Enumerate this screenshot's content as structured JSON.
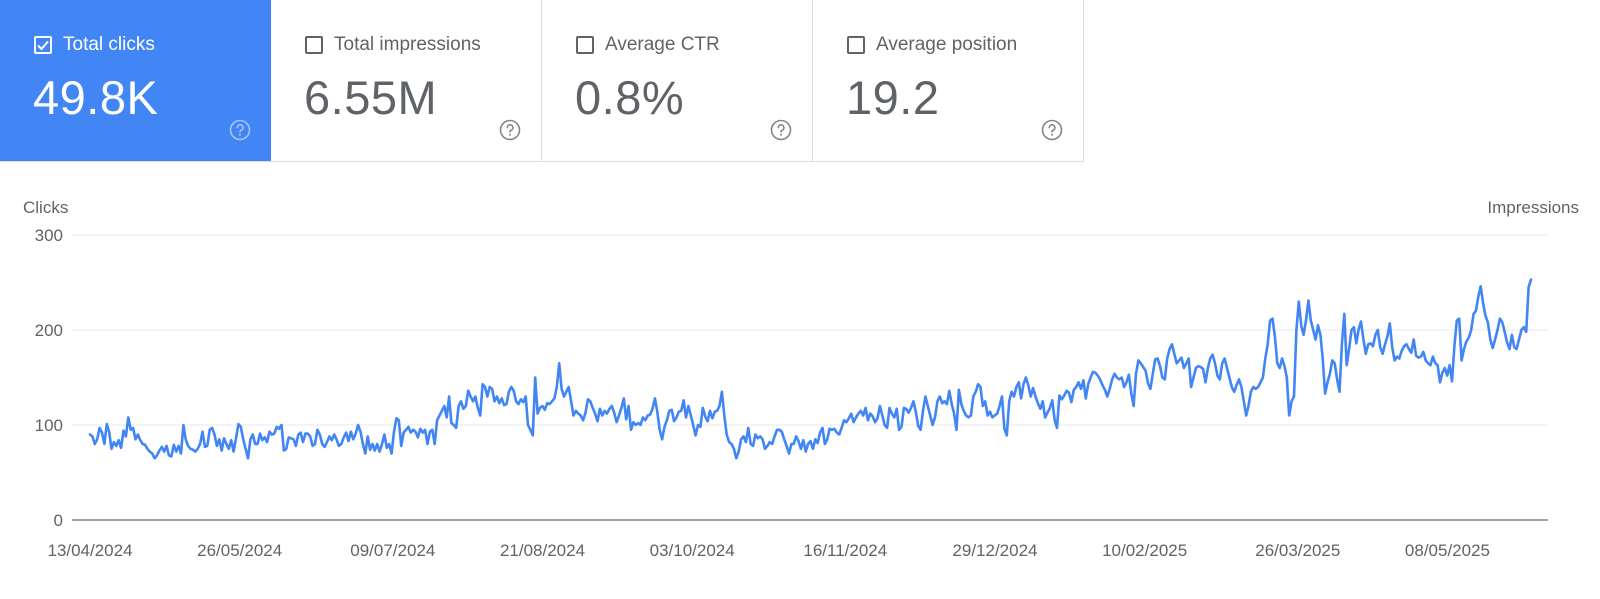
{
  "cards": [
    {
      "label": "Total clicks",
      "value": "49.8K",
      "checked": true
    },
    {
      "label": "Total impressions",
      "value": "6.55M",
      "checked": false
    },
    {
      "label": "Average CTR",
      "value": "0.8%",
      "checked": false
    },
    {
      "label": "Average position",
      "value": "19.2",
      "checked": false
    }
  ],
  "colors": {
    "accent": "#4285f4",
    "line": "#4285f4",
    "grid": "#e8eaed",
    "axis": "#5f6368"
  },
  "chart_data": {
    "type": "line",
    "ylabel": "Clicks",
    "y2label": "Impressions",
    "ylim": [
      0,
      300
    ],
    "yticks": [
      "0",
      "100",
      "200",
      "300"
    ],
    "xticks": [
      "13/04/2024",
      "26/05/2024",
      "09/07/2024",
      "21/08/2024",
      "03/10/2024",
      "16/11/2024",
      "29/12/2024",
      "10/02/2025",
      "26/03/2025",
      "08/05/2025"
    ],
    "x_start": "13/04/2024",
    "x_end": "01/06/2025",
    "grid": true,
    "series": [
      {
        "values": [
          90,
          88,
          80,
          85,
          97,
          92,
          80,
          101,
          93,
          75,
          82,
          78,
          84,
          76,
          94,
          88,
          108,
          95,
          97,
          85,
          90,
          84,
          80,
          79,
          75,
          72,
          70,
          65,
          68,
          73,
          77,
          72,
          78,
          68,
          67,
          79,
          72,
          78,
          70,
          100,
          85,
          78,
          75,
          74,
          72,
          75,
          80,
          93,
          77,
          78,
          95,
          97,
          90,
          78,
          85,
          73,
          86,
          80,
          75,
          84,
          72,
          86,
          101,
          98,
          85,
          75,
          65,
          85,
          90,
          80,
          80,
          91,
          84,
          87,
          82,
          93,
          90,
          91,
          98,
          96,
          100,
          73,
          75,
          87,
          86,
          85,
          78,
          90,
          92,
          82,
          91,
          91,
          88,
          78,
          80,
          95,
          90,
          80,
          77,
          82,
          88,
          84,
          90,
          85,
          78,
          80,
          87,
          92,
          83,
          93,
          85,
          91,
          100,
          93,
          80,
          70,
          88,
          74,
          80,
          73,
          80,
          72,
          80,
          90,
          76,
          80,
          70,
          93,
          107,
          105,
          78,
          92,
          95,
          98,
          92,
          95,
          93,
          87,
          96,
          92,
          95,
          80,
          93,
          95,
          80,
          105,
          110,
          115,
          120,
          108,
          130,
          102,
          100,
          97,
          120,
          125,
          117,
          120,
          136,
          130,
          125,
          130,
          118,
          110,
          143,
          140,
          130,
          140,
          138,
          125,
          130,
          123,
          128,
          121,
          122,
          135,
          140,
          136,
          125,
          122,
          127,
          124,
          130,
          100,
          95,
          89,
          150,
          112,
          118,
          120,
          116,
          123,
          122,
          125,
          128,
          140,
          165,
          138,
          130,
          135,
          140,
          125,
          110,
          115,
          112,
          110,
          105,
          113,
          127,
          125,
          118,
          112,
          104,
          117,
          110,
          115,
          112,
          117,
          120,
          113,
          103,
          110,
          118,
          128,
          106,
          120,
          95,
          103,
          100,
          102,
          100,
          108,
          105,
          110,
          111,
          117,
          128,
          114,
          95,
          85,
          98,
          105,
          115,
          116,
          104,
          108,
          114,
          115,
          126,
          108,
          120,
          110,
          100,
          89,
          100,
          98,
          118,
          109,
          104,
          115,
          107,
          114,
          115,
          120,
          135,
          110,
          90,
          82,
          80,
          75,
          65,
          72,
          85,
          88,
          82,
          97,
          80,
          78,
          90,
          86,
          88,
          85,
          75,
          78,
          82,
          80,
          88,
          95,
          95,
          93,
          85,
          78,
          70,
          80,
          80,
          88,
          83,
          75,
          84,
          72,
          80,
          83,
          75,
          85,
          81,
          92,
          97,
          80,
          85,
          96,
          95,
          96,
          92,
          90,
          97,
          105,
          103,
          107,
          112,
          103,
          108,
          112,
          115,
          110,
          118,
          105,
          112,
          109,
          103,
          107,
          120,
          110,
          100,
          97,
          118,
          112,
          108,
          117,
          95,
          98,
          118,
          117,
          113,
          118,
          125,
          114,
          99,
          95,
          115,
          130,
          120,
          110,
          100,
          108,
          125,
          130,
          123,
          125,
          122,
          136,
          122,
          112,
          95,
          137,
          122,
          115,
          110,
          108,
          110,
          130,
          135,
          143,
          140,
          120,
          125,
          110,
          114,
          108,
          110,
          112,
          120,
          130,
          96,
          89,
          125,
          135,
          130,
          140,
          145,
          128,
          143,
          150,
          142,
          130,
          139,
          130,
          123,
          117,
          125,
          108,
          113,
          118,
          126,
          105,
          97,
          131,
          127,
          131,
          136,
          134,
          124,
          137,
          140,
          145,
          138,
          147,
          128,
          143,
          150,
          156,
          155,
          152,
          148,
          142,
          137,
          130,
          138,
          148,
          154,
          150,
          148,
          150,
          140,
          145,
          153,
          133,
          120,
          154,
          168,
          165,
          161,
          157,
          144,
          138,
          154,
          169,
          170,
          162,
          150,
          148,
          170,
          180,
          185,
          175,
          165,
          168,
          171,
          160,
          165,
          170,
          140,
          150,
          160,
          162,
          161,
          159,
          145,
          160,
          170,
          174,
          165,
          152,
          148,
          165,
          170,
          160,
          150,
          140,
          135,
          142,
          148,
          140,
          125,
          110,
          120,
          135,
          140,
          138,
          140,
          145,
          150,
          170,
          185,
          210,
          212,
          193,
          165,
          160,
          170,
          162,
          150,
          110,
          125,
          130,
          200,
          230,
          205,
          195,
          210,
          231,
          210,
          200,
          190,
          205,
          195,
          170,
          133,
          145,
          154,
          168,
          165,
          148,
          135,
          185,
          217,
          163,
          180,
          200,
          203,
          186,
          201,
          209,
          190,
          175,
          185,
          186,
          183,
          195,
          200,
          182,
          175,
          185,
          193,
          207,
          182,
          168,
          172,
          170,
          178,
          183,
          185,
          180,
          176,
          190,
          173,
          171,
          172,
          177,
          168,
          165,
          163,
          172,
          165,
          163,
          145,
          155,
          160,
          152,
          163,
          146,
          183,
          210,
          212,
          168,
          180,
          188,
          192,
          200,
          217,
          220,
          235,
          246,
          228,
          215,
          208,
          190,
          181,
          190,
          200,
          212,
          208,
          198,
          187,
          180,
          195,
          182,
          180,
          190,
          200,
          203,
          198,
          245,
          253
        ]
      }
    ]
  }
}
